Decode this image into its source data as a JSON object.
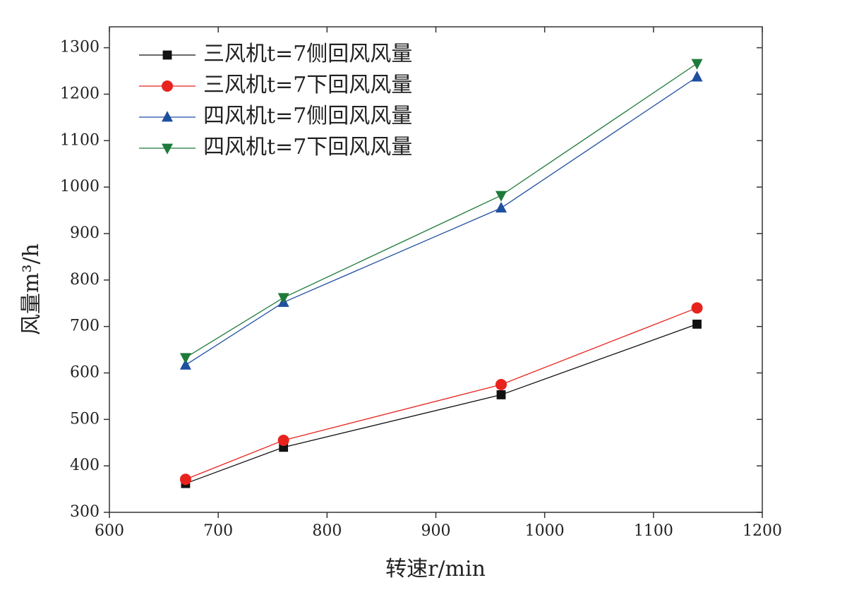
{
  "chart_data": {
    "type": "line",
    "xlabel": "转速r/min",
    "ylabel": "风量m³/h",
    "x": [
      670,
      760,
      960,
      1140
    ],
    "series": [
      {
        "name": "三风机t=7侧回风风量",
        "color": "#111111",
        "marker": "square",
        "values": [
          362,
          440,
          553,
          705
        ]
      },
      {
        "name": "三风机t=7下回风风量",
        "color": "#e8231e",
        "marker": "circle",
        "values": [
          371,
          455,
          575,
          740
        ]
      },
      {
        "name": "四风机t=7侧回风风量",
        "color": "#1f4fa0",
        "marker": "triangle-up",
        "values": [
          617,
          752,
          955,
          1237
        ]
      },
      {
        "name": "四风机t=7下回风风量",
        "color": "#1e7a3a",
        "marker": "triangle-down",
        "values": [
          633,
          762,
          982,
          1266
        ]
      }
    ],
    "xlim": [
      600,
      1200
    ],
    "xticks": [
      600,
      700,
      800,
      900,
      1000,
      1100,
      1200
    ],
    "ylim": [
      300,
      1345
    ],
    "yticks": [
      300,
      400,
      500,
      600,
      700,
      800,
      900,
      1000,
      1100,
      1200,
      1300
    ],
    "legend": "upper-left"
  }
}
